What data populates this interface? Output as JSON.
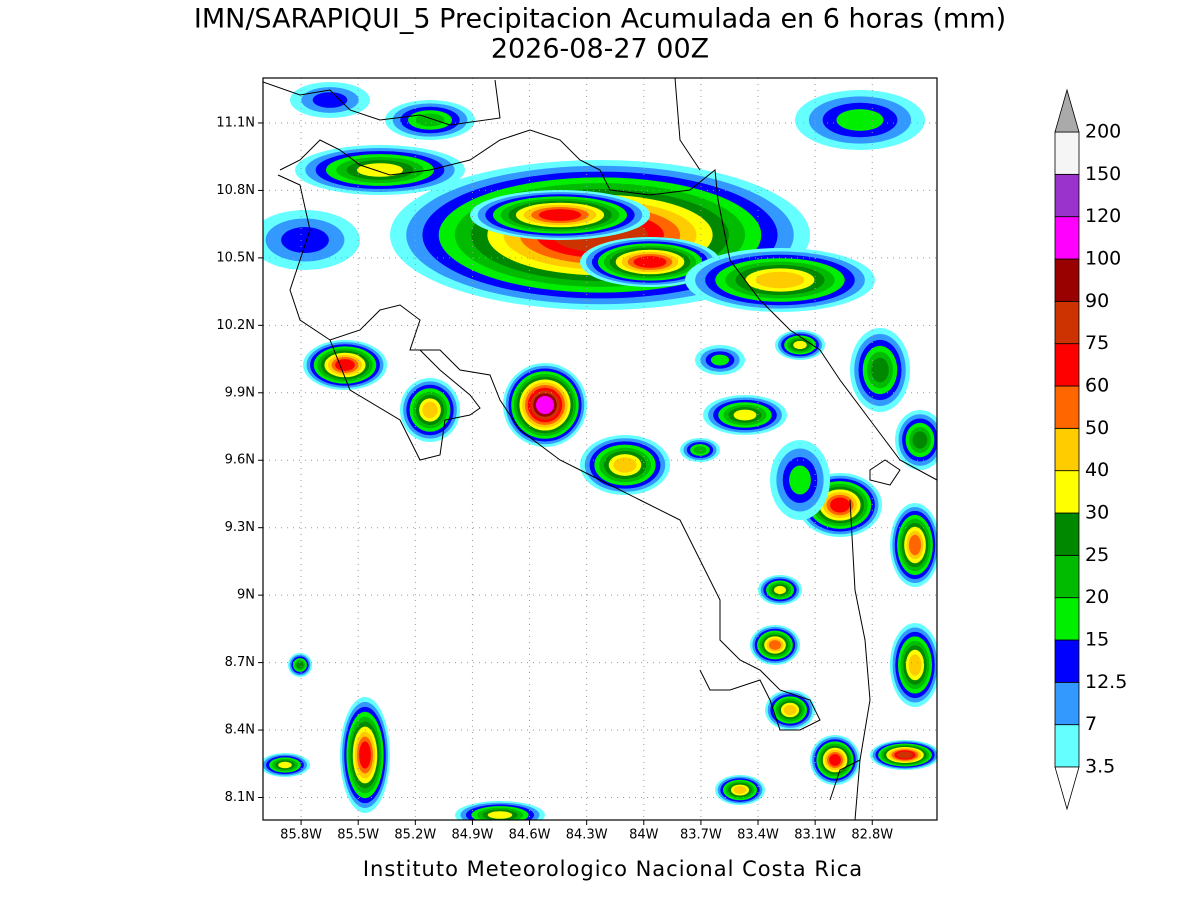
{
  "map": {
    "title": "IMN/SARAPIQUI_5 Precipitacion Acumulada en 6 horas (mm)",
    "subtitle": "2026-08-27 00Z",
    "footer": "Instituto Meteorologico Nacional Costa Rica",
    "xlim": [
      -86.0,
      -82.46
    ],
    "ylim": [
      8.0,
      11.3
    ],
    "xticks": [
      {
        "value": -85.8,
        "label": "85.8W"
      },
      {
        "value": -85.5,
        "label": "85.5W"
      },
      {
        "value": -85.2,
        "label": "85.2W"
      },
      {
        "value": -84.9,
        "label": "84.9W"
      },
      {
        "value": -84.6,
        "label": "84.6W"
      },
      {
        "value": -84.3,
        "label": "84.3W"
      },
      {
        "value": -84.0,
        "label": "84W"
      },
      {
        "value": -83.7,
        "label": "83.7W"
      },
      {
        "value": -83.4,
        "label": "83.4W"
      },
      {
        "value": -83.1,
        "label": "83.1W"
      },
      {
        "value": -82.8,
        "label": "82.8W"
      }
    ],
    "yticks": [
      {
        "value": 8.1,
        "label": "8.1N"
      },
      {
        "value": 8.4,
        "label": "8.4N"
      },
      {
        "value": 8.7,
        "label": "8.7N"
      },
      {
        "value": 9.0,
        "label": "9N"
      },
      {
        "value": 9.3,
        "label": "9.3N"
      },
      {
        "value": 9.6,
        "label": "9.6N"
      },
      {
        "value": 9.9,
        "label": "9.9N"
      },
      {
        "value": 10.2,
        "label": "10.2N"
      },
      {
        "value": 10.5,
        "label": "10.5N"
      },
      {
        "value": 10.8,
        "label": "10.8N"
      },
      {
        "value": 11.1,
        "label": "11.1N"
      }
    ],
    "grid": true,
    "colorbar": {
      "levels": [
        3.5,
        7,
        12.5,
        15,
        20,
        25,
        30,
        40,
        50,
        60,
        75,
        90,
        100,
        120,
        150,
        200
      ],
      "colors": [
        "#66ffff",
        "#3399ff",
        "#0000ff",
        "#00ee00",
        "#00bb00",
        "#008800",
        "#ffff00",
        "#ffcc00",
        "#ff6600",
        "#ff0000",
        "#cc3300",
        "#990000",
        "#ff00ff",
        "#9933cc",
        "#f5f5f5"
      ],
      "under_color": "#ffffff",
      "over_color": "#aaaaaa"
    }
  }
}
